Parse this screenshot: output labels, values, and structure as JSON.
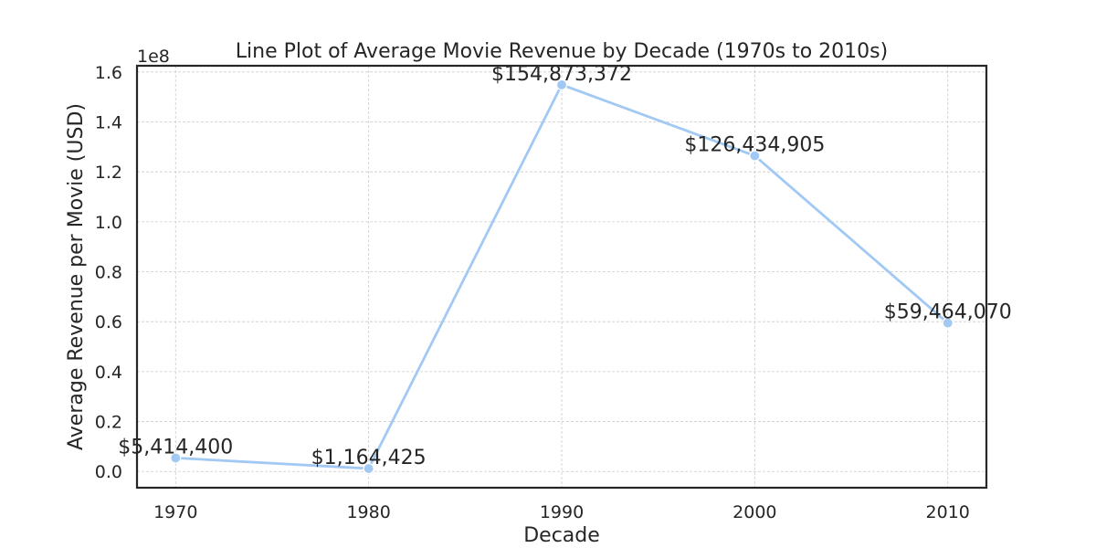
{
  "chart_data": {
    "type": "line",
    "title": "Line Plot of Average Movie Revenue by Decade (1970s to 2010s)",
    "xlabel": "Decade",
    "ylabel": "Average Revenue per Movie (USD)",
    "y_offset_label": "1e8",
    "x": [
      1970,
      1980,
      1990,
      2000,
      2010
    ],
    "series": [
      {
        "values": [
          5414400,
          1164425,
          154873372,
          126434905,
          59464070
        ]
      }
    ],
    "data_labels": [
      "$5,414,400",
      "$1,164,425",
      "$154,873,372",
      "$126,434,905",
      "$59,464,070"
    ],
    "x_ticks": [
      1970,
      1980,
      1990,
      2000,
      2010
    ],
    "x_tick_labels": [
      "1970",
      "1980",
      "1990",
      "2000",
      "2010"
    ],
    "y_ticks": [
      0,
      20000000,
      40000000,
      60000000,
      80000000,
      100000000,
      120000000,
      140000000,
      160000000
    ],
    "y_tick_labels": [
      "0.0",
      "0.2",
      "0.4",
      "0.6",
      "0.8",
      "1.0",
      "1.2",
      "1.4",
      "1.6"
    ],
    "xlim": [
      1968,
      2012
    ],
    "ylim": [
      -6500000,
      162500000
    ],
    "grid": true,
    "line_color": "#a1c9f4",
    "marker_color": "#a1c9f4"
  }
}
